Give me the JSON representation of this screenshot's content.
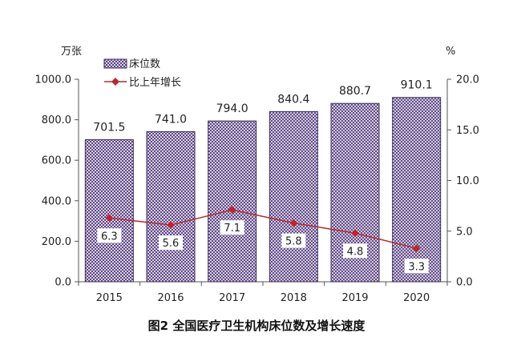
{
  "chart_data": {
    "type": "bar+line",
    "title": "图2 全国医疗卫生机构床位数及增长速度",
    "categories": [
      "2015",
      "2016",
      "2017",
      "2018",
      "2019",
      "2020"
    ],
    "y_left": {
      "unit": "万张",
      "ylim": [
        0,
        1000
      ],
      "ticks": [
        "0.0",
        "200.0",
        "400.0",
        "600.0",
        "800.0",
        "1000.0"
      ]
    },
    "y_right": {
      "unit": "%",
      "ylim": [
        0,
        20
      ],
      "ticks": [
        "0.0",
        "5.0",
        "10.0",
        "15.0",
        "20.0"
      ]
    },
    "series": [
      {
        "name": "床位数",
        "type": "bar",
        "axis": "left",
        "values": [
          701.5,
          741.0,
          794.0,
          840.4,
          880.7,
          910.1
        ],
        "labels": [
          "701.5",
          "741.0",
          "794.0",
          "840.4",
          "880.7",
          "910.1"
        ]
      },
      {
        "name": "比上年增长",
        "type": "line",
        "axis": "right",
        "values": [
          6.3,
          5.6,
          7.1,
          5.8,
          4.8,
          3.3
        ],
        "labels": [
          "6.3",
          "5.6",
          "7.1",
          "5.8",
          "4.8",
          "3.3"
        ]
      }
    ],
    "legend_position": "top-left",
    "grid": false,
    "colors": {
      "bar_fill": "#d7cfe6",
      "bar_pattern": "#5e4a84",
      "bar_border": "#3a2e5a",
      "line": "#c0252b"
    }
  }
}
